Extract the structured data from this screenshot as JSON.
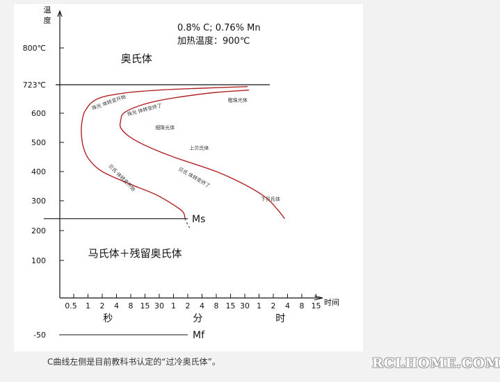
{
  "chart_data": {
    "type": "line",
    "title_lines": [
      "0.8% C; 0.76% Mn",
      "加热温度：900℃"
    ],
    "ylabel": "温度",
    "xlabel": "时间",
    "y_ticks": [
      {
        "value": 800,
        "label": "800℃"
      },
      {
        "value": 723,
        "label": "723℃"
      },
      {
        "value": 600,
        "label": "600"
      },
      {
        "value": 500,
        "label": "500"
      },
      {
        "value": 400,
        "label": "400"
      },
      {
        "value": 300,
        "label": "300"
      },
      {
        "value": 200,
        "label": "200"
      },
      {
        "value": 100,
        "label": "100"
      },
      {
        "value": -50,
        "label": "-50"
      }
    ],
    "x_tick_labels": [
      "0.5",
      "1",
      "2",
      "4",
      "8",
      "15",
      "30",
      "1",
      "2",
      "4",
      "8",
      "15",
      "30",
      "1",
      "2",
      "4",
      "8",
      "15"
    ],
    "x_units": [
      {
        "label": "秒",
        "tick_index": 2.4
      },
      {
        "label": "分",
        "tick_index": 8.7
      },
      {
        "label": "时",
        "tick_index": 14.5
      }
    ],
    "reference_lines": [
      {
        "name": "A1",
        "value": 723
      },
      {
        "name": "Ms",
        "value": 240,
        "label": "Ms"
      },
      {
        "name": "Mf",
        "value": -50,
        "label": "Mf"
      }
    ],
    "series": [
      {
        "name": "transformation-start",
        "points": [
          [
            12.2,
            715
          ],
          [
            9,
            708
          ],
          [
            6,
            700
          ],
          [
            3.3,
            685
          ],
          [
            1.6,
            660
          ],
          [
            0.8,
            610
          ],
          [
            0.55,
            560
          ],
          [
            0.55,
            520
          ],
          [
            0.7,
            480
          ],
          [
            1.1,
            440
          ],
          [
            2,
            400
          ],
          [
            3.8,
            360
          ],
          [
            5.8,
            320
          ],
          [
            7.2,
            280
          ],
          [
            7.7,
            260
          ],
          [
            7.8,
            240
          ]
        ]
      },
      {
        "name": "transformation-start-below-Ms",
        "dashed": true,
        "points": [
          [
            7.8,
            240
          ],
          [
            8,
            220
          ],
          [
            8.2,
            205
          ]
        ]
      },
      {
        "name": "transformation-end",
        "points": [
          [
            12.3,
            700
          ],
          [
            10,
            690
          ],
          [
            8,
            675
          ],
          [
            6,
            655
          ],
          [
            4.5,
            630
          ],
          [
            3.5,
            600
          ],
          [
            3.3,
            575
          ],
          [
            3.3,
            550
          ],
          [
            3.9,
            520
          ],
          [
            5,
            490
          ],
          [
            7,
            450
          ],
          [
            10,
            400
          ],
          [
            12,
            355
          ],
          [
            13.5,
            310
          ],
          [
            14.3,
            270
          ],
          [
            14.8,
            240
          ]
        ]
      }
    ],
    "regions": [
      {
        "label": "奥氏体",
        "x": 4.4,
        "y": 770
      },
      {
        "label": "马氏体＋残留奥氏体",
        "x": 4.3,
        "y": 112
      }
    ],
    "annotations": [
      {
        "label": "珠光 体转变开始",
        "x": 2.5,
        "y": 640,
        "angle": -20
      },
      {
        "label": "珠光 体转变终了",
        "x": 5.0,
        "y": 608,
        "angle": -15
      },
      {
        "label": "粗珠光体",
        "x": 11.5,
        "y": 650,
        "angle": 0
      },
      {
        "label": "细珠光体",
        "x": 6.4,
        "y": 545,
        "angle": 0
      },
      {
        "label": "上贝氏体",
        "x": 8.8,
        "y": 475,
        "angle": 0
      },
      {
        "label": "贝氏 体转变开始",
        "x": 3.3,
        "y": 375,
        "angle": 45
      },
      {
        "label": "贝氏 体转变终了",
        "x": 8.4,
        "y": 375,
        "angle": 30
      },
      {
        "label": "下贝氏体",
        "x": 13.8,
        "y": 300,
        "angle": 0
      }
    ],
    "grid": false,
    "legend": "none"
  },
  "caption": "C曲线左侧是目前教科书认定的“过冷奥氏体”。",
  "watermark": "RCLHOME.COM"
}
